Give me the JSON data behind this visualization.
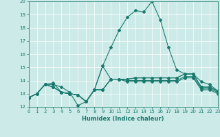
{
  "title": "",
  "xlabel": "Humidex (Indice chaleur)",
  "x": [
    0,
    1,
    2,
    3,
    4,
    5,
    6,
    7,
    8,
    9,
    10,
    11,
    12,
    13,
    14,
    15,
    16,
    17,
    18,
    19,
    20,
    21,
    22,
    23
  ],
  "lines": [
    [
      12.7,
      13.0,
      13.7,
      13.7,
      13.5,
      13.1,
      12.1,
      12.4,
      13.3,
      15.1,
      14.1,
      14.1,
      14.1,
      14.2,
      14.2,
      14.2,
      14.2,
      14.2,
      14.2,
      14.5,
      14.5,
      13.5,
      13.5,
      13.2
    ],
    [
      12.7,
      13.0,
      13.7,
      13.8,
      13.1,
      13.0,
      12.9,
      12.4,
      13.3,
      15.1,
      16.5,
      17.8,
      18.8,
      19.3,
      19.2,
      20.0,
      18.6,
      16.5,
      14.8,
      14.5,
      14.5,
      13.9,
      13.7,
      13.2
    ],
    [
      12.7,
      13.0,
      13.7,
      13.5,
      13.1,
      13.0,
      12.9,
      12.4,
      13.3,
      13.3,
      14.1,
      14.1,
      14.1,
      14.2,
      14.2,
      14.2,
      14.2,
      14.2,
      14.2,
      14.5,
      14.5,
      13.5,
      13.5,
      13.2
    ],
    [
      12.7,
      13.0,
      13.7,
      13.5,
      13.1,
      13.0,
      12.9,
      12.4,
      13.3,
      13.3,
      14.1,
      14.1,
      14.0,
      14.0,
      14.0,
      14.0,
      14.0,
      14.0,
      14.0,
      14.3,
      14.3,
      13.4,
      13.4,
      13.1
    ],
    [
      12.7,
      13.0,
      13.7,
      13.5,
      13.1,
      13.0,
      12.9,
      12.4,
      13.3,
      13.3,
      14.1,
      14.1,
      13.9,
      13.9,
      13.9,
      13.9,
      13.9,
      13.9,
      13.9,
      14.2,
      14.2,
      13.3,
      13.3,
      13.0
    ]
  ],
  "line_color": "#1a7a6e",
  "marker": "D",
  "marker_size": 2,
  "bg_color": "#cceae7",
  "grid_color": "#ffffff",
  "xlim": [
    0,
    23
  ],
  "ylim": [
    12,
    20
  ],
  "yticks": [
    12,
    13,
    14,
    15,
    16,
    17,
    18,
    19,
    20
  ],
  "xticks": [
    0,
    1,
    2,
    3,
    4,
    5,
    6,
    7,
    8,
    9,
    10,
    11,
    12,
    13,
    14,
    15,
    16,
    17,
    18,
    19,
    20,
    21,
    22,
    23
  ],
  "tick_color": "#1a7a6e",
  "label_fontsize": 6,
  "tick_fontsize": 5,
  "linewidth": 0.8
}
